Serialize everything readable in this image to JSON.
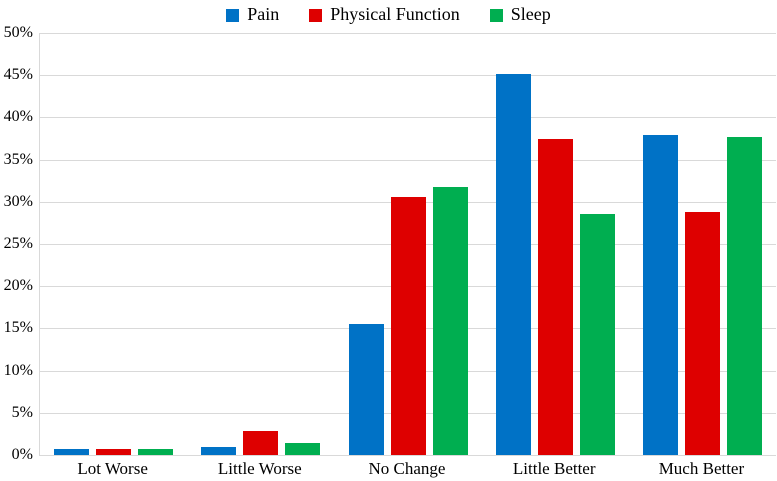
{
  "chart_data": {
    "type": "bar",
    "title": "",
    "categories": [
      "Lot Worse",
      "Little Worse",
      "No Change",
      "Little Better",
      "Much Better"
    ],
    "series": [
      {
        "name": "Pain",
        "color": "#0072C6",
        "values": [
          0.7,
          1.0,
          15.5,
          45.1,
          37.9
        ]
      },
      {
        "name": "Physical Function",
        "color": "#DE0000",
        "values": [
          0.7,
          2.9,
          30.6,
          37.4,
          28.8
        ]
      },
      {
        "name": "Sleep",
        "color": "#00AE50",
        "values": [
          0.7,
          1.4,
          31.8,
          28.6,
          37.7
        ]
      }
    ],
    "xlabel": "",
    "ylabel": "",
    "ylim": [
      0,
      50
    ],
    "ytick_step": 5,
    "ytick_labels": [
      "0%",
      "5%",
      "10%",
      "15%",
      "20%",
      "25%",
      "30%",
      "35%",
      "40%",
      "45%",
      "50%"
    ],
    "grid": true,
    "legend_position": "top-center"
  },
  "colors": {
    "gridline": "#d9d9d9",
    "axis_line": "#d9d9d9",
    "text": "#000000",
    "background": "#ffffff"
  }
}
